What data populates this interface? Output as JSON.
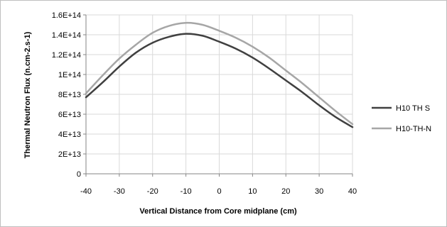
{
  "chart_data": {
    "type": "line",
    "title": "",
    "xlabel": "Vertical Distance  from Core midplane (cm)",
    "ylabel": "Thermal Neutron Flux (n.cm-2.s-1)",
    "xlim": [
      -40,
      40
    ],
    "ylim": [
      0,
      160000000000000.0
    ],
    "xticks": [
      -40,
      -30,
      -20,
      -10,
      0,
      10,
      20,
      30,
      40
    ],
    "xtick_labels": [
      "-40",
      "-30",
      "-20",
      "-10",
      "0",
      "10",
      "20",
      "30",
      "40"
    ],
    "yticks": [
      0,
      20000000000000.0,
      40000000000000.0,
      60000000000000.0,
      80000000000000.0,
      100000000000000.0,
      120000000000000.0,
      140000000000000.0,
      160000000000000.0
    ],
    "ytick_labels": [
      "0",
      "2E+13",
      "4E+13",
      "6E+13",
      "8E+13",
      "1E+14",
      "1.2E+14",
      "1.4E+14",
      "1.6E+14"
    ],
    "grid": true,
    "legend_position": "right",
    "series": [
      {
        "name": "H10 TH S",
        "color": "#404040",
        "x": [
          -40,
          -35,
          -30,
          -25,
          -20,
          -15,
          -10,
          -5,
          0,
          5,
          10,
          15,
          20,
          25,
          30,
          35,
          40
        ],
        "y": [
          77000000000000.0,
          92000000000000.0,
          108000000000000.0,
          122000000000000.0,
          132000000000000.0,
          138000000000000.0,
          141000000000000.0,
          139000000000000.0,
          133000000000000.0,
          126000000000000.0,
          117000000000000.0,
          106000000000000.0,
          94000000000000.0,
          82000000000000.0,
          69000000000000.0,
          57000000000000.0,
          47000000000000.0
        ]
      },
      {
        "name": "H10-TH-N",
        "color": "#a6a6a6",
        "x": [
          -40,
          -35,
          -30,
          -25,
          -20,
          -15,
          -10,
          -5,
          0,
          5,
          10,
          15,
          20,
          25,
          30,
          35,
          40
        ],
        "y": [
          81000000000000.0,
          99000000000000.0,
          116000000000000.0,
          130000000000000.0,
          142000000000000.0,
          149000000000000.0,
          152000000000000.0,
          150000000000000.0,
          144000000000000.0,
          137000000000000.0,
          128000000000000.0,
          117000000000000.0,
          104000000000000.0,
          91000000000000.0,
          77000000000000.0,
          63000000000000.0,
          50000000000000.0
        ]
      }
    ]
  }
}
